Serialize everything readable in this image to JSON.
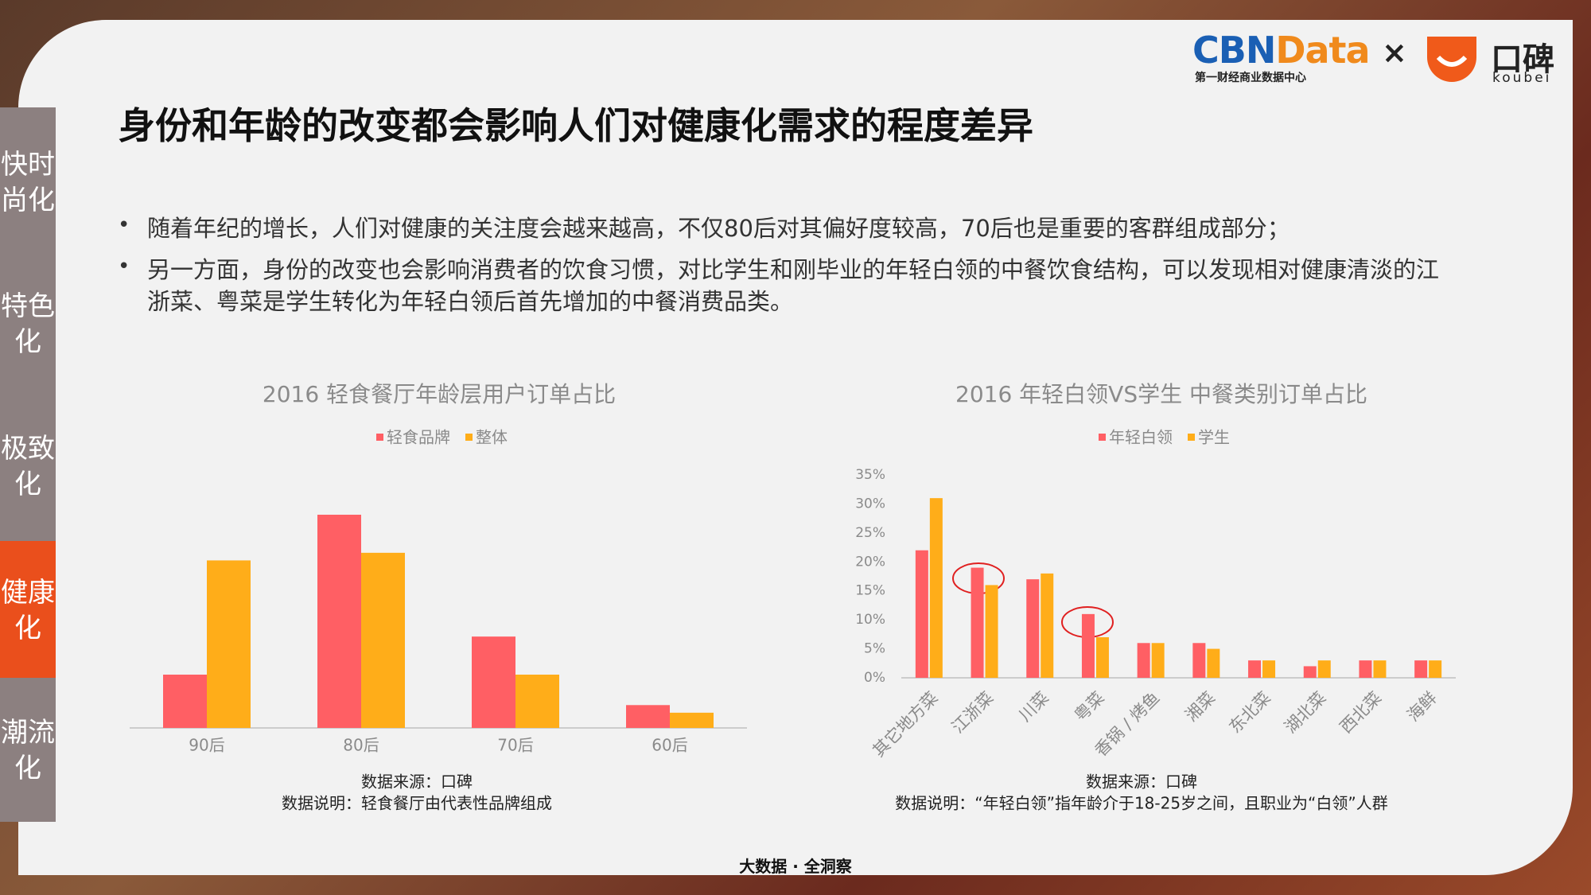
{
  "logos": {
    "cbn": "CBN",
    "data": "Data",
    "cbn_sub": "第一财经商业数据中心",
    "times": "×",
    "koubei_cn": "口碑",
    "koubei_en": "koubei"
  },
  "side_tabs": [
    {
      "label": "快时尚化",
      "active": false
    },
    {
      "label": "特色化",
      "active": false
    },
    {
      "label": "极致化",
      "active": false
    },
    {
      "label": "健康化",
      "active": true
    },
    {
      "label": "潮流化",
      "active": false
    }
  ],
  "title": "身份和年龄的改变都会影响人们对健康化需求的程度差异",
  "bullets": [
    "随着年纪的增长，人们对健康的关注度会越来越高，不仅80后对其偏好度较高，70后也是重要的客群组成部分；",
    "另一方面，身份的改变也会影响消费者的饮食习惯，对比学生和刚毕业的年轻白领的中餐饮食结构，可以发现相对健康清淡的江浙菜、粤菜是学生转化为年轻白领后首先增加的中餐消费品类。"
  ],
  "chart_data": [
    {
      "type": "bar",
      "title": "2016 轻食餐厅年龄层用户订单占比",
      "categories": [
        "90后",
        "80后",
        "70后",
        "60后"
      ],
      "series": [
        {
          "name": "轻食品牌",
          "color": "#ff5f64",
          "values": [
            7,
            28,
            12,
            3
          ]
        },
        {
          "name": "整体",
          "color": "#ffad19",
          "values": [
            22,
            23,
            7,
            2
          ]
        }
      ],
      "ylim": [
        0,
        35
      ],
      "source": "数据来源：口碑",
      "note": "数据说明：轻食餐厅由代表性品牌组成"
    },
    {
      "type": "bar",
      "title": "2016 年轻白领VS学生 中餐类别订单占比",
      "categories": [
        "其它地方菜",
        "江浙菜",
        "川菜",
        "粤菜",
        "香锅 / 烤鱼",
        "湘菜",
        "东北菜",
        "湖北菜",
        "西北菜",
        "海鲜"
      ],
      "series": [
        {
          "name": "年轻白领",
          "color": "#ff5f64",
          "values": [
            22,
            19,
            17,
            11,
            6,
            6,
            3,
            2,
            3,
            3
          ]
        },
        {
          "name": "学生",
          "color": "#ffad19",
          "values": [
            31,
            16,
            18,
            7,
            6,
            5,
            3,
            3,
            3,
            3
          ]
        }
      ],
      "ylim": [
        0,
        35
      ],
      "yticks": [
        {
          "value": 0,
          "label": "0%"
        },
        {
          "value": 5,
          "label": "5%"
        },
        {
          "value": 10,
          "label": "10%"
        },
        {
          "value": 15,
          "label": "15%"
        },
        {
          "value": 20,
          "label": "20%"
        },
        {
          "value": 25,
          "label": "25%"
        },
        {
          "value": 30,
          "label": "30%"
        },
        {
          "value": 35,
          "label": "35%"
        }
      ],
      "source": "数据来源：口碑",
      "note": "数据说明：“年轻白领”指年龄介于18-25岁之间，且职业为“白领”人群"
    }
  ],
  "footer": "大数据 · 全洞察"
}
